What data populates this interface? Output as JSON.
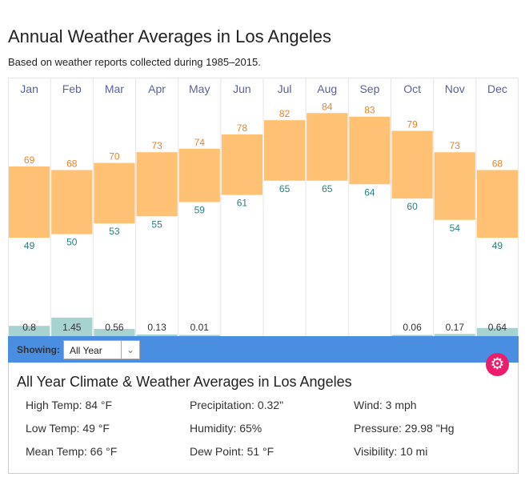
{
  "title": "Annual Weather Averages in Los Angeles",
  "subtitle": "Based on weather reports collected during 1985–2015.",
  "colors": {
    "temp_bar": "#ffc275",
    "high_label": "#e8832a",
    "low_label": "#2a7f7f",
    "precip_bar": "#a6d2cf",
    "month_label": "#5a5fa0",
    "toolbar": "#4a8ee2",
    "gear": "#ec1d6b"
  },
  "chart_data": {
    "type": "bar",
    "categories": [
      "Jan",
      "Feb",
      "Mar",
      "Apr",
      "May",
      "Jun",
      "Jul",
      "Aug",
      "Sep",
      "Oct",
      "Nov",
      "Dec"
    ],
    "series": [
      {
        "name": "High",
        "values": [
          69,
          68,
          70,
          73,
          74,
          78,
          82,
          84,
          83,
          79,
          73,
          68
        ]
      },
      {
        "name": "Low",
        "values": [
          49,
          50,
          53,
          55,
          59,
          61,
          65,
          65,
          64,
          60,
          54,
          49
        ]
      },
      {
        "name": "Precipitation",
        "values": [
          0.8,
          1.45,
          0.56,
          0.13,
          0.01,
          null,
          null,
          null,
          null,
          0.06,
          0.17,
          0.64
        ]
      }
    ],
    "precip_labels": [
      "0.8",
      "1.45",
      "0.56",
      "0.13",
      "0.01",
      "",
      "",
      "",
      "",
      "0.06",
      "0.17",
      "0.64"
    ]
  },
  "toolbar": {
    "showing_label": "Showing:",
    "selected": "All Year",
    "gear_icon": "gear-icon"
  },
  "info": {
    "title": "All Year Climate & Weather Averages in Los Angeles",
    "stats": [
      "High Temp: 84 °F",
      "Precipitation: 0.32\"",
      "Wind: 3 mph",
      "Low Temp: 49 °F",
      "Humidity: 65%",
      "Pressure: 29.98 \"Hg",
      "Mean Temp: 66 °F",
      "Dew Point: 51 °F",
      "Visibility: 10 mi"
    ]
  }
}
